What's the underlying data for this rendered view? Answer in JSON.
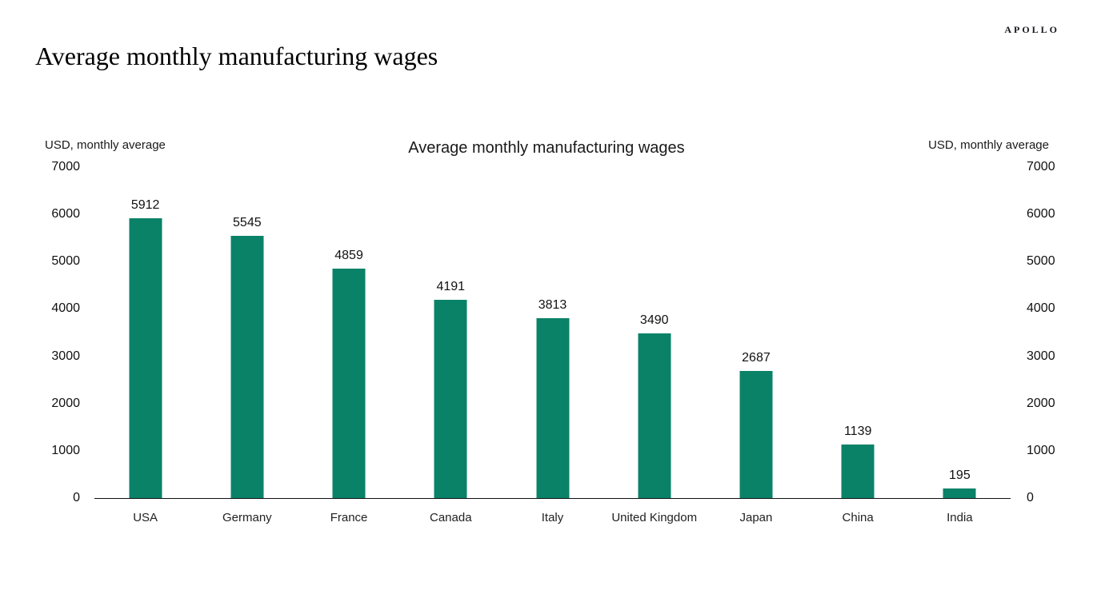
{
  "page": {
    "logo": "APOLLO",
    "title": "Average monthly manufacturing wages"
  },
  "chart_data": {
    "type": "bar",
    "title": "Average monthly manufacturing wages",
    "left_axis_label": "USD, monthly average",
    "right_axis_label": "USD, monthly average",
    "categories": [
      "USA",
      "Germany",
      "France",
      "Canada",
      "Italy",
      "United Kingdom",
      "Japan",
      "China",
      "India"
    ],
    "values": [
      5912,
      5545,
      4859,
      4191,
      3813,
      3490,
      2687,
      1139,
      195
    ],
    "yticks": [
      0,
      1000,
      2000,
      3000,
      4000,
      5000,
      6000,
      7000
    ],
    "ylim": [
      0,
      7000
    ],
    "bar_color": "#0a8268",
    "grid": false,
    "legend": false
  }
}
